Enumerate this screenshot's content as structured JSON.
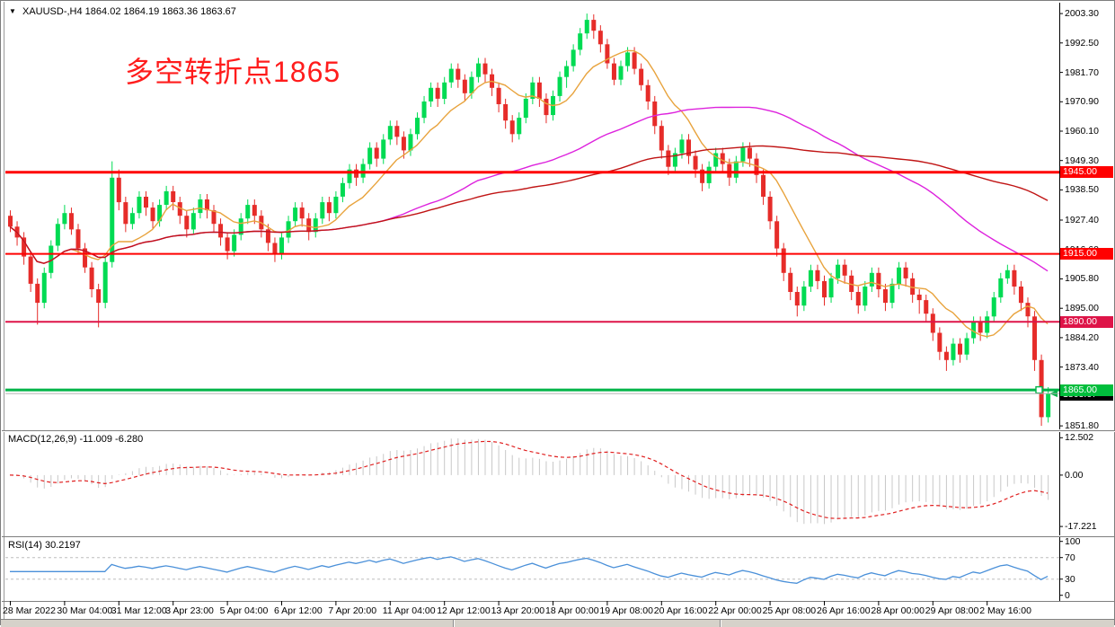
{
  "header": {
    "symbol": "XAUUSD-,H4",
    "quotes": "1864.02 1864.19 1863.36 1863.67",
    "dropdown_icon": "▼"
  },
  "annotation": {
    "text": "多空转折点1865",
    "color": "#ff1c1c"
  },
  "chart_data": [
    {
      "type": "candlestick",
      "symbol": "XAUUSD-",
      "timeframe": "H4",
      "ylim": [
        1850.5,
        2007.3
      ],
      "y_ticks": [
        "2003.30",
        "1992.50",
        "1981.70",
        "1970.90",
        "1960.10",
        "1949.30",
        "1938.50",
        "1927.40",
        "1916.60",
        "1905.80",
        "1895.00",
        "1884.20",
        "1873.40",
        "1862.60",
        "1851.80"
      ],
      "x_labels": [
        "28 Mar 2022",
        "30 Mar 04:00",
        "31 Mar 12:00",
        "3 Apr 23:00",
        "5 Apr 04:00",
        "6 Apr 12:00",
        "7 Apr 20:00",
        "11 Apr 04:00",
        "12 Apr 12:00",
        "13 Apr 20:00",
        "18 Apr 00:00",
        "19 Apr 08:00",
        "20 Apr 16:00",
        "22 Apr 00:00",
        "25 Apr 08:00",
        "26 Apr 16:00",
        "28 Apr 00:00",
        "29 Apr 08:00",
        "2 May 16:00"
      ],
      "bars_per_label": 8,
      "colors": {
        "bull": "#00db53",
        "bear": "#e62c29"
      },
      "moving_averages": [
        {
          "name": "fast-ma",
          "period": 10,
          "color": "#e8a33d"
        },
        {
          "name": "medium-ma",
          "period": 55,
          "color": "#dd22dd"
        },
        {
          "name": "slow-ma",
          "period": 89,
          "color": "#c01414"
        }
      ],
      "h_lines": [
        {
          "price": 1945.0,
          "label": "1945.00",
          "color": "#ff0000",
          "tag_bg": "#ff0000",
          "width": 3
        },
        {
          "price": 1915.0,
          "label": "1915.00",
          "color": "#ff0000",
          "tag_bg": "#ff0000",
          "width": 2
        },
        {
          "price": 1890.0,
          "label": "1890.00",
          "color": "#de1448",
          "tag_bg": "#de1448",
          "width": 2
        },
        {
          "price": 1865.0,
          "label": "1865.00",
          "color": "#00b448",
          "tag_bg": "#00be3c",
          "width": 3,
          "handle": true
        }
      ],
      "current_price": {
        "value": 1863.67,
        "label": "1863.67",
        "line_color": "#b0b0b0",
        "tag_bg": "#000000"
      },
      "candles": [
        [
          1929,
          1931,
          1923,
          1925
        ],
        [
          1925,
          1927,
          1918,
          1921
        ],
        [
          1921,
          1923,
          1911,
          1914
        ],
        [
          1914,
          1916,
          1901,
          1904
        ],
        [
          1904,
          1906,
          1889,
          1897
        ],
        [
          1897,
          1910,
          1895,
          1908
        ],
        [
          1908,
          1920,
          1906,
          1918
        ],
        [
          1918,
          1928,
          1916,
          1926
        ],
        [
          1926,
          1933,
          1924,
          1930
        ],
        [
          1930,
          1932,
          1922,
          1924
        ],
        [
          1924,
          1926,
          1915,
          1917
        ],
        [
          1917,
          1919,
          1908,
          1910
        ],
        [
          1910,
          1912,
          1899,
          1902
        ],
        [
          1902,
          1904,
          1888,
          1897
        ],
        [
          1897,
          1914,
          1895,
          1912
        ],
        [
          1912,
          1949,
          1910,
          1943
        ],
        [
          1943,
          1946,
          1931,
          1934
        ],
        [
          1934,
          1936,
          1923,
          1926
        ],
        [
          1926,
          1932,
          1924,
          1930
        ],
        [
          1930,
          1938,
          1928,
          1936
        ],
        [
          1936,
          1938,
          1929,
          1932
        ],
        [
          1932,
          1934,
          1924,
          1927
        ],
        [
          1927,
          1935,
          1925,
          1933
        ],
        [
          1933,
          1940,
          1931,
          1938
        ],
        [
          1938,
          1940,
          1931,
          1934
        ],
        [
          1934,
          1936,
          1926,
          1929
        ],
        [
          1929,
          1931,
          1921,
          1924
        ],
        [
          1924,
          1932,
          1922,
          1930
        ],
        [
          1930,
          1937,
          1928,
          1935
        ],
        [
          1935,
          1937,
          1928,
          1931
        ],
        [
          1931,
          1933,
          1923,
          1926
        ],
        [
          1926,
          1928,
          1918,
          1921
        ],
        [
          1921,
          1923,
          1913,
          1916
        ],
        [
          1916,
          1924,
          1914,
          1922
        ],
        [
          1922,
          1930,
          1920,
          1928
        ],
        [
          1928,
          1935,
          1926,
          1933
        ],
        [
          1933,
          1935,
          1926,
          1929
        ],
        [
          1929,
          1931,
          1921,
          1924
        ],
        [
          1924,
          1926,
          1916,
          1919
        ],
        [
          1919,
          1921,
          1912,
          1915
        ],
        [
          1915,
          1923,
          1913,
          1921
        ],
        [
          1921,
          1929,
          1919,
          1927
        ],
        [
          1927,
          1934,
          1925,
          1932
        ],
        [
          1932,
          1934,
          1925,
          1928
        ],
        [
          1928,
          1930,
          1920,
          1923
        ],
        [
          1923,
          1930,
          1921,
          1928
        ],
        [
          1928,
          1936,
          1926,
          1934
        ],
        [
          1934,
          1936,
          1927,
          1930
        ],
        [
          1930,
          1938,
          1928,
          1936
        ],
        [
          1936,
          1943,
          1934,
          1941
        ],
        [
          1941,
          1948,
          1939,
          1946
        ],
        [
          1946,
          1948,
          1940,
          1943
        ],
        [
          1943,
          1950,
          1941,
          1948
        ],
        [
          1948,
          1956,
          1946,
          1954
        ],
        [
          1954,
          1956,
          1947,
          1950
        ],
        [
          1950,
          1959,
          1948,
          1957
        ],
        [
          1957,
          1964,
          1955,
          1962
        ],
        [
          1962,
          1964,
          1955,
          1958
        ],
        [
          1958,
          1960,
          1950,
          1953
        ],
        [
          1953,
          1961,
          1951,
          1959
        ],
        [
          1959,
          1967,
          1957,
          1965
        ],
        [
          1965,
          1973,
          1963,
          1971
        ],
        [
          1971,
          1978,
          1969,
          1976
        ],
        [
          1976,
          1978,
          1969,
          1972
        ],
        [
          1972,
          1980,
          1970,
          1978
        ],
        [
          1978,
          1985,
          1976,
          1983
        ],
        [
          1983,
          1985,
          1976,
          1979
        ],
        [
          1979,
          1981,
          1971,
          1974
        ],
        [
          1974,
          1982,
          1972,
          1980
        ],
        [
          1980,
          1987,
          1978,
          1985
        ],
        [
          1985,
          1987,
          1978,
          1981
        ],
        [
          1981,
          1983,
          1973,
          1976
        ],
        [
          1976,
          1978,
          1967,
          1970
        ],
        [
          1970,
          1972,
          1961,
          1964
        ],
        [
          1964,
          1966,
          1956,
          1959
        ],
        [
          1959,
          1967,
          1957,
          1965
        ],
        [
          1965,
          1974,
          1963,
          1972
        ],
        [
          1972,
          1980,
          1970,
          1978
        ],
        [
          1978,
          1980,
          1969,
          1972
        ],
        [
          1972,
          1974,
          1963,
          1966
        ],
        [
          1966,
          1975,
          1964,
          1973
        ],
        [
          1973,
          1982,
          1971,
          1980
        ],
        [
          1980,
          1986,
          1976,
          1984
        ],
        [
          1984,
          1992,
          1982,
          1990
        ],
        [
          1990,
          1998,
          1988,
          1996
        ],
        [
          1996,
          2003.3,
          1994,
          2001
        ],
        [
          2001,
          2003,
          1994,
          1997
        ],
        [
          1997,
          1999,
          1989,
          1992
        ],
        [
          1992,
          1994,
          1983,
          1985
        ],
        [
          1985,
          1987,
          1977,
          1979
        ],
        [
          1979,
          1986,
          1977,
          1984
        ],
        [
          1984,
          1991,
          1982,
          1989
        ],
        [
          1989,
          1991,
          1981,
          1983
        ],
        [
          1983,
          1985,
          1975,
          1977
        ],
        [
          1977,
          1979,
          1968,
          1971
        ],
        [
          1971,
          1973,
          1959,
          1962
        ],
        [
          1962,
          1964,
          1950,
          1953
        ],
        [
          1953,
          1955,
          1944,
          1947
        ],
        [
          1947,
          1954,
          1945,
          1952
        ],
        [
          1952,
          1959,
          1950,
          1957
        ],
        [
          1957,
          1959,
          1948,
          1951
        ],
        [
          1951,
          1953,
          1943,
          1946
        ],
        [
          1946,
          1948,
          1938,
          1941
        ],
        [
          1941,
          1949,
          1939,
          1947
        ],
        [
          1947,
          1954,
          1945,
          1952
        ],
        [
          1952,
          1954,
          1945,
          1948
        ],
        [
          1948,
          1950,
          1940,
          1943
        ],
        [
          1943,
          1951,
          1941,
          1949
        ],
        [
          1949,
          1956,
          1947,
          1954
        ],
        [
          1954,
          1956,
          1947,
          1950
        ],
        [
          1950,
          1952,
          1941,
          1944
        ],
        [
          1944,
          1946,
          1933,
          1936
        ],
        [
          1936,
          1938,
          1924,
          1927
        ],
        [
          1927,
          1929,
          1914,
          1917
        ],
        [
          1917,
          1919,
          1905,
          1908
        ],
        [
          1908,
          1910,
          1898,
          1901
        ],
        [
          1901,
          1903,
          1892,
          1896
        ],
        [
          1896,
          1905,
          1894,
          1903
        ],
        [
          1903,
          1911,
          1901,
          1909
        ],
        [
          1909,
          1911,
          1902,
          1905
        ],
        [
          1905,
          1907,
          1896,
          1899
        ],
        [
          1899,
          1908,
          1897,
          1906
        ],
        [
          1906,
          1913,
          1904,
          1911
        ],
        [
          1911,
          1913,
          1904,
          1907
        ],
        [
          1907,
          1909,
          1898,
          1901
        ],
        [
          1901,
          1903,
          1893,
          1896
        ],
        [
          1896,
          1905,
          1894,
          1903
        ],
        [
          1903,
          1910,
          1901,
          1908
        ],
        [
          1908,
          1910,
          1899,
          1902
        ],
        [
          1902,
          1904,
          1894,
          1897
        ],
        [
          1897,
          1906,
          1895,
          1904
        ],
        [
          1904,
          1912,
          1902,
          1910
        ],
        [
          1910,
          1912,
          1903,
          1906
        ],
        [
          1906,
          1908,
          1897,
          1900
        ],
        [
          1900,
          1902,
          1893,
          1898
        ],
        [
          1898,
          1900,
          1890,
          1893
        ],
        [
          1893,
          1895,
          1883,
          1886
        ],
        [
          1886,
          1888,
          1876,
          1879
        ],
        [
          1879,
          1881,
          1872,
          1876
        ],
        [
          1876,
          1884,
          1874,
          1882
        ],
        [
          1882,
          1884,
          1875,
          1878
        ],
        [
          1878,
          1886,
          1876,
          1884
        ],
        [
          1884,
          1892,
          1882,
          1890
        ],
        [
          1890,
          1892,
          1883,
          1886
        ],
        [
          1886,
          1894,
          1884,
          1892
        ],
        [
          1892,
          1901,
          1890,
          1899
        ],
        [
          1899,
          1908,
          1897,
          1906
        ],
        [
          1906,
          1911,
          1904,
          1909
        ],
        [
          1909,
          1911,
          1900,
          1903
        ],
        [
          1903,
          1905,
          1894,
          1897
        ],
        [
          1897,
          1899,
          1888,
          1892
        ],
        [
          1892,
          1894,
          1872,
          1876
        ],
        [
          1876,
          1878,
          1851.8,
          1855
        ],
        [
          1855,
          1866,
          1853,
          1863.7
        ]
      ]
    },
    {
      "type": "histogram+line",
      "name": "MACD(12,26,9)",
      "values_text": "-11.009 -6.280",
      "params": {
        "fast": 12,
        "slow": 26,
        "signal": 9
      },
      "y_ticks": [
        "12.502",
        "0.00",
        "-17.221"
      ],
      "ylim": [
        -20.2,
        14.4
      ],
      "colors": {
        "histogram": "#c8c8c8",
        "signal": "#e02020"
      }
    },
    {
      "type": "line",
      "name": "RSI(14)",
      "value_text": "30.2197",
      "period": 14,
      "levels": [
        70,
        30
      ],
      "y_ticks": [
        "100",
        "70",
        "30",
        "0"
      ],
      "ylim": [
        -10.5,
        107.8
      ],
      "colors": {
        "line": "#4a90d9",
        "level": "#bdbdbd"
      }
    }
  ]
}
